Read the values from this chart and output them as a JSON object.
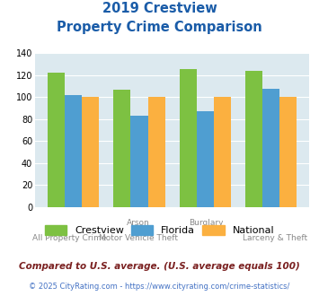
{
  "title_line1": "2019 Crestview",
  "title_line2": "Property Crime Comparison",
  "top_labels": [
    "",
    "Arson",
    "Burglary",
    ""
  ],
  "bot_labels": [
    "All Property Crime",
    "Motor Vehicle Theft",
    "",
    "Larceny & Theft"
  ],
  "crestview": [
    122,
    107,
    126,
    124
  ],
  "florida": [
    102,
    83,
    87,
    108
  ],
  "national": [
    100,
    100,
    100,
    100
  ],
  "bar_colors": [
    "#7dc142",
    "#4f9ed1",
    "#fbb040"
  ],
  "ylim": [
    0,
    140
  ],
  "yticks": [
    0,
    20,
    40,
    60,
    80,
    100,
    120,
    140
  ],
  "legend_labels": [
    "Crestview",
    "Florida",
    "National"
  ],
  "bg_color": "#dce9ef",
  "footnote1": "Compared to U.S. average. (U.S. average equals 100)",
  "footnote2": "© 2025 CityRating.com - https://www.cityrating.com/crime-statistics/",
  "title_color": "#1a5ca8",
  "footnote1_color": "#7a2020",
  "footnote2_color": "#4472c4",
  "label_color": "#888888"
}
